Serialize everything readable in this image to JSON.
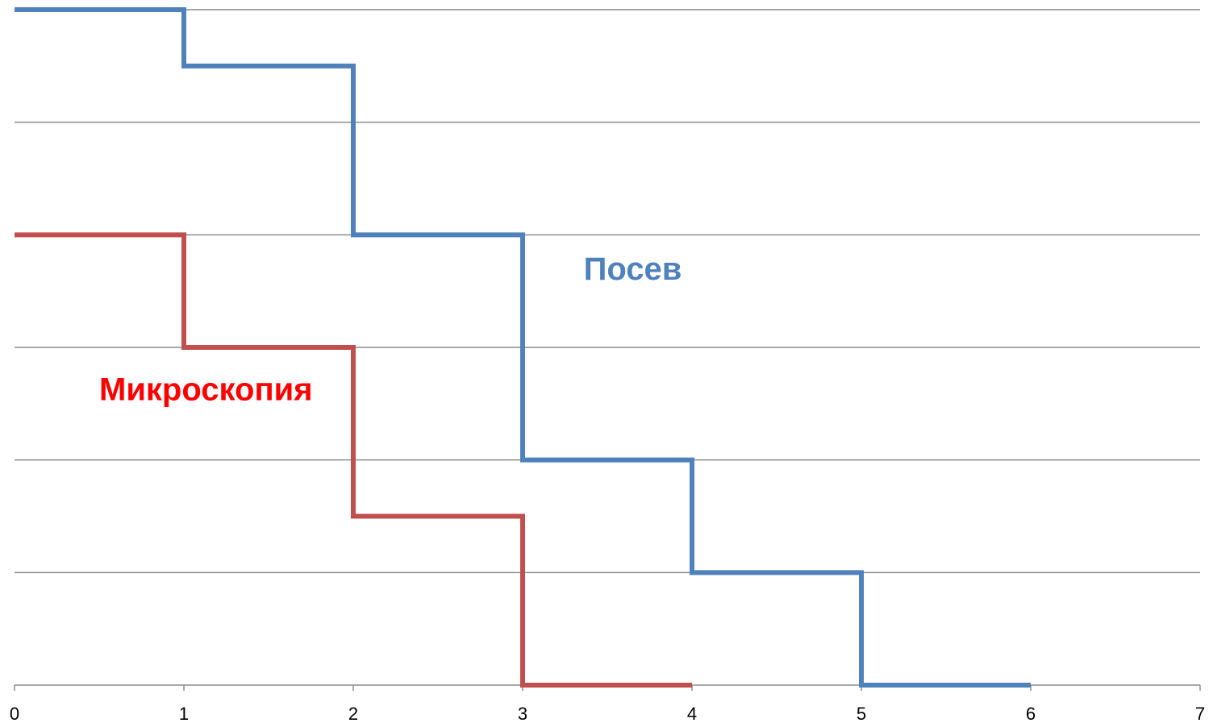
{
  "chart_data": {
    "type": "line",
    "step": true,
    "title": "",
    "xlabel": "",
    "ylabel": "",
    "xlim": [
      0,
      7
    ],
    "ylim": [
      0,
      6
    ],
    "x_ticks": [
      "0",
      "1",
      "2",
      "3",
      "4",
      "5",
      "6",
      "7"
    ],
    "y_ticks_shown": false,
    "grid": {
      "horizontal": true,
      "vertical": false,
      "y_step": 1
    },
    "legend": "none",
    "series": [
      {
        "name": "Посев",
        "color": "#4f81bd",
        "points": [
          {
            "x": 0,
            "y": 6
          },
          {
            "x": 1,
            "y": 5.5
          },
          {
            "x": 2,
            "y": 4
          },
          {
            "x": 3,
            "y": 2
          },
          {
            "x": 4,
            "y": 1
          },
          {
            "x": 5,
            "y": 0
          },
          {
            "x": 6,
            "y": 0
          }
        ]
      },
      {
        "name": "Микроскопия",
        "color": "#c0504d",
        "points": [
          {
            "x": 0,
            "y": 4
          },
          {
            "x": 1,
            "y": 3
          },
          {
            "x": 2,
            "y": 1.5
          },
          {
            "x": 3,
            "y": 0
          },
          {
            "x": 4,
            "y": 0
          }
        ]
      }
    ],
    "annotations": [
      {
        "text": "Посев",
        "x": 3.36,
        "y": 3.6,
        "color": "#4f81bd"
      },
      {
        "text": "Микроскопия",
        "x": 0.5,
        "y": 2.53,
        "color": "#ff0000"
      }
    ]
  }
}
